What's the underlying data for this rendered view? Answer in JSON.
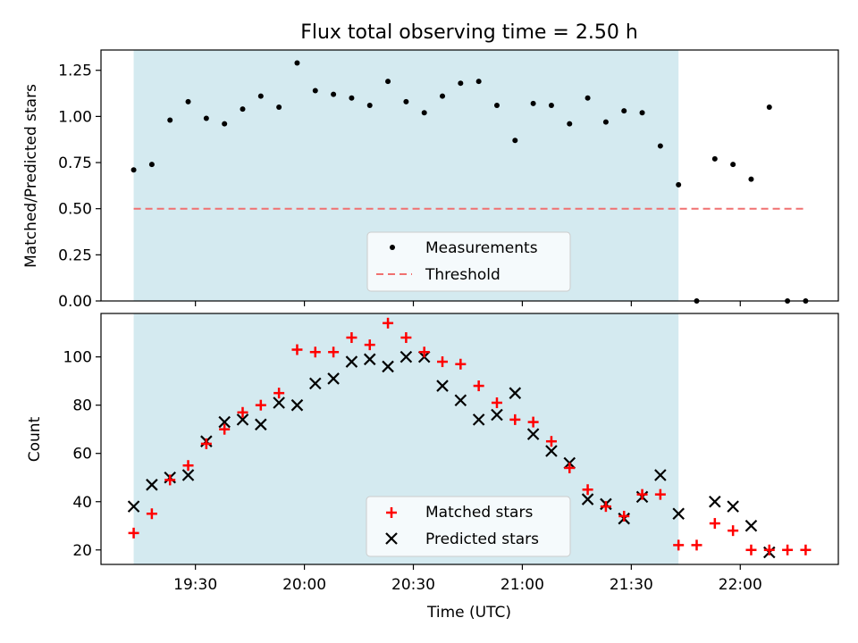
{
  "title": "Flux total observing time = 2.50 h",
  "chart_data": [
    {
      "type": "scatter",
      "panel": "top",
      "title": "Flux total observing time = 2.50 h",
      "xlabel": "",
      "ylabel": "Matched/Predicted stars",
      "ylim": [
        0,
        1.36
      ],
      "yticks": [
        0.0,
        0.25,
        0.5,
        0.75,
        1.0,
        1.25
      ],
      "ytick_labels": [
        "0.00",
        "0.25",
        "0.50",
        "0.75",
        "1.00",
        "1.25"
      ],
      "observing_window": [
        "19:13",
        "21:43"
      ],
      "series": [
        {
          "name": "Measurements",
          "marker": "dot",
          "color": "#000000",
          "x": [
            "19:13",
            "19:18",
            "19:23",
            "19:28",
            "19:33",
            "19:38",
            "19:43",
            "19:48",
            "19:53",
            "19:58",
            "20:03",
            "20:08",
            "20:13",
            "20:18",
            "20:23",
            "20:28",
            "20:33",
            "20:38",
            "20:43",
            "20:48",
            "20:53",
            "20:58",
            "21:03",
            "21:08",
            "21:13",
            "21:18",
            "21:23",
            "21:28",
            "21:33",
            "21:38",
            "21:43",
            "21:48",
            "21:53",
            "21:58",
            "22:03",
            "22:08",
            "22:13",
            "22:18"
          ],
          "y": [
            0.71,
            0.74,
            0.98,
            1.08,
            0.99,
            0.96,
            1.04,
            1.11,
            1.05,
            1.29,
            1.14,
            1.12,
            1.1,
            1.06,
            1.19,
            1.08,
            1.02,
            1.11,
            1.18,
            1.19,
            1.06,
            0.87,
            1.07,
            1.06,
            0.96,
            1.1,
            0.97,
            1.03,
            1.02,
            0.84,
            0.63,
            0.0,
            0.77,
            0.74,
            0.66,
            1.05,
            0.0,
            0.0
          ]
        },
        {
          "name": "Threshold",
          "marker": "dashed-line",
          "color": "#f07070",
          "x": [
            "19:13",
            "22:18"
          ],
          "y": [
            0.5,
            0.5
          ]
        }
      ],
      "legend_position": "bottom-center"
    },
    {
      "type": "scatter",
      "panel": "bottom",
      "xlabel": "Time (UTC)",
      "ylabel": "Count",
      "ylim": [
        14,
        118
      ],
      "yticks": [
        20,
        40,
        60,
        80,
        100
      ],
      "xticks": [
        "19:30",
        "20:00",
        "20:30",
        "21:00",
        "21:30",
        "22:00"
      ],
      "xlim": [
        "19:04",
        "22:27"
      ],
      "observing_window": [
        "19:13",
        "21:43"
      ],
      "series": [
        {
          "name": "Matched stars",
          "marker": "plus",
          "color": "#ff0000",
          "x": [
            "19:13",
            "19:18",
            "19:23",
            "19:28",
            "19:33",
            "19:38",
            "19:43",
            "19:48",
            "19:53",
            "19:58",
            "20:03",
            "20:08",
            "20:13",
            "20:18",
            "20:23",
            "20:28",
            "20:33",
            "20:38",
            "20:43",
            "20:48",
            "20:53",
            "20:58",
            "21:03",
            "21:08",
            "21:13",
            "21:18",
            "21:23",
            "21:28",
            "21:33",
            "21:38",
            "21:43",
            "21:48",
            "21:53",
            "21:58",
            "22:03",
            "22:08",
            "22:13",
            "22:18"
          ],
          "y": [
            27,
            35,
            49,
            55,
            64,
            70,
            77,
            80,
            85,
            103,
            102,
            102,
            108,
            105,
            114,
            108,
            102,
            98,
            97,
            88,
            81,
            74,
            73,
            65,
            54,
            45,
            38,
            34,
            43,
            43,
            22,
            22,
            31,
            28,
            20,
            20,
            20,
            20
          ]
        },
        {
          "name": "Predicted stars",
          "marker": "x",
          "color": "#000000",
          "x": [
            "19:13",
            "19:18",
            "19:23",
            "19:28",
            "19:33",
            "19:38",
            "19:43",
            "19:48",
            "19:53",
            "19:58",
            "20:03",
            "20:08",
            "20:13",
            "20:18",
            "20:23",
            "20:28",
            "20:33",
            "20:38",
            "20:43",
            "20:48",
            "20:53",
            "20:58",
            "21:03",
            "21:08",
            "21:13",
            "21:18",
            "21:23",
            "21:28",
            "21:33",
            "21:38",
            "21:43",
            "21:53",
            "21:58",
            "22:03",
            "22:08"
          ],
          "y": [
            38,
            47,
            50,
            51,
            65,
            73,
            74,
            72,
            81,
            80,
            89,
            91,
            98,
            99,
            96,
            100,
            100,
            88,
            82,
            74,
            76,
            85,
            68,
            61,
            56,
            41,
            39,
            33,
            42,
            51,
            35,
            40,
            38,
            30,
            19
          ]
        }
      ],
      "legend_position": "bottom-center"
    }
  ],
  "colors": {
    "observing_window_fill": "#d4eaf0",
    "frame": "#000000"
  }
}
